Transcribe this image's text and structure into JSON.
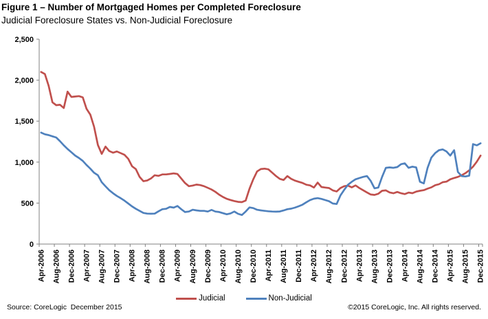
{
  "footer": {
    "source": "Source: CoreLogic  December 2015",
    "copyright": "©2015 CoreLogic, Inc. All rights reserved."
  },
  "chart_data": {
    "type": "line",
    "title": "Figure 1 – Number of Mortgaged Homes per Completed Foreclosure",
    "subtitle": "Judicial Foreclosure States vs. Non-Judicial Foreclosure",
    "xlabel": "",
    "ylabel": "",
    "ylim": [
      0,
      2500
    ],
    "ytick_interval": 500,
    "ytick_labels": [
      "0",
      "500",
      "1,000",
      "1,500",
      "2,000",
      "2,500"
    ],
    "xtick_every": 4,
    "grid": false,
    "legend_position": "bottom",
    "categories": [
      "Apr-2006",
      "May-2006",
      "Jun-2006",
      "Jul-2006",
      "Aug-2006",
      "Sep-2006",
      "Oct-2006",
      "Nov-2006",
      "Dec-2006",
      "Jan-2007",
      "Feb-2007",
      "Mar-2007",
      "Apr-2007",
      "May-2007",
      "Jun-2007",
      "Jul-2007",
      "Aug-2007",
      "Sep-2007",
      "Oct-2007",
      "Nov-2007",
      "Dec-2007",
      "Jan-2008",
      "Feb-2008",
      "Mar-2008",
      "Apr-2008",
      "May-2008",
      "Jun-2008",
      "Jul-2008",
      "Aug-2008",
      "Sep-2008",
      "Oct-2008",
      "Nov-2008",
      "Dec-2008",
      "Jan-2009",
      "Feb-2009",
      "Mar-2009",
      "Apr-2009",
      "May-2009",
      "Jun-2009",
      "Jul-2009",
      "Aug-2009",
      "Sep-2009",
      "Oct-2009",
      "Nov-2009",
      "Dec-2009",
      "Jan-2010",
      "Feb-2010",
      "Mar-2010",
      "Apr-2010",
      "May-2010",
      "Jun-2010",
      "Jul-2010",
      "Aug-2010",
      "Sep-2010",
      "Oct-2010",
      "Nov-2010",
      "Dec-2010",
      "Jan-2011",
      "Feb-2011",
      "Mar-2011",
      "Apr-2011",
      "May-2011",
      "Jun-2011",
      "Jul-2011",
      "Aug-2011",
      "Sep-2011",
      "Oct-2011",
      "Nov-2011",
      "Dec-2011",
      "Jan-2012",
      "Feb-2012",
      "Mar-2012",
      "Apr-2012",
      "May-2012",
      "Jun-2012",
      "Jul-2012",
      "Aug-2012",
      "Sep-2012",
      "Oct-2012",
      "Nov-2012",
      "Dec-2012",
      "Jan-2013",
      "Feb-2013",
      "Mar-2013",
      "Apr-2013",
      "May-2013",
      "Jun-2013",
      "Jul-2013",
      "Aug-2013",
      "Sep-2013",
      "Oct-2013",
      "Nov-2013",
      "Dec-2013",
      "Jan-2014",
      "Feb-2014",
      "Mar-2014",
      "Apr-2014",
      "May-2014",
      "Jun-2014",
      "Jul-2014",
      "Aug-2014",
      "Sep-2014",
      "Oct-2014",
      "Nov-2014",
      "Dec-2014",
      "Jan-2015",
      "Feb-2015",
      "Mar-2015",
      "Apr-2015",
      "May-2015",
      "Jun-2015",
      "Jul-2015",
      "Aug-2015",
      "Sep-2015",
      "Oct-2015",
      "Nov-2015",
      "Dec-2015"
    ],
    "series": [
      {
        "name": "Judicial",
        "color": "#C0504D",
        "values": [
          2100,
          2075,
          1930,
          1730,
          1695,
          1700,
          1660,
          1860,
          1795,
          1800,
          1805,
          1790,
          1650,
          1580,
          1430,
          1210,
          1100,
          1190,
          1135,
          1115,
          1130,
          1110,
          1090,
          1040,
          950,
          915,
          820,
          768,
          775,
          800,
          840,
          832,
          850,
          850,
          856,
          862,
          855,
          800,
          745,
          706,
          714,
          726,
          720,
          706,
          686,
          665,
          638,
          602,
          575,
          552,
          538,
          525,
          515,
          512,
          530,
          675,
          790,
          886,
          915,
          920,
          912,
          872,
          830,
          795,
          782,
          830,
          796,
          774,
          760,
          746,
          724,
          716,
          690,
          750,
          696,
          690,
          684,
          655,
          642,
          684,
          706,
          713,
          692,
          716,
          684,
          657,
          630,
          605,
          600,
          614,
          650,
          655,
          630,
          620,
          636,
          620,
          610,
          628,
          621,
          640,
          650,
          658,
          676,
          692,
          718,
          730,
          755,
          762,
          790,
          806,
          820,
          840,
          866,
          900,
          945,
          1005,
          1080
        ]
      },
      {
        "name": "Non-Judicial",
        "color": "#4F81BD",
        "values": [
          1360,
          1340,
          1330,
          1315,
          1300,
          1255,
          1205,
          1160,
          1120,
          1080,
          1050,
          1015,
          965,
          920,
          870,
          840,
          755,
          705,
          657,
          620,
          587,
          560,
          530,
          495,
          460,
          430,
          405,
          380,
          372,
          370,
          372,
          400,
          425,
          430,
          453,
          445,
          465,
          425,
          391,
          397,
          419,
          411,
          405,
          405,
          397,
          417,
          397,
          391,
          377,
          363,
          374,
          397,
          369,
          355,
          397,
          447,
          439,
          419,
          411,
          405,
          400,
          397,
          395,
          398,
          410,
          425,
          432,
          445,
          461,
          481,
          510,
          537,
          554,
          560,
          551,
          537,
          523,
          495,
          489,
          593,
          662,
          724,
          760,
          790,
          805,
          820,
          830,
          770,
          680,
          690,
          820,
          930,
          935,
          930,
          940,
          975,
          985,
          930,
          945,
          935,
          760,
          740,
          930,
          1055,
          1110,
          1145,
          1155,
          1130,
          1080,
          1145,
          880,
          830,
          825,
          835,
          1220,
          1205,
          1230
        ]
      }
    ]
  }
}
